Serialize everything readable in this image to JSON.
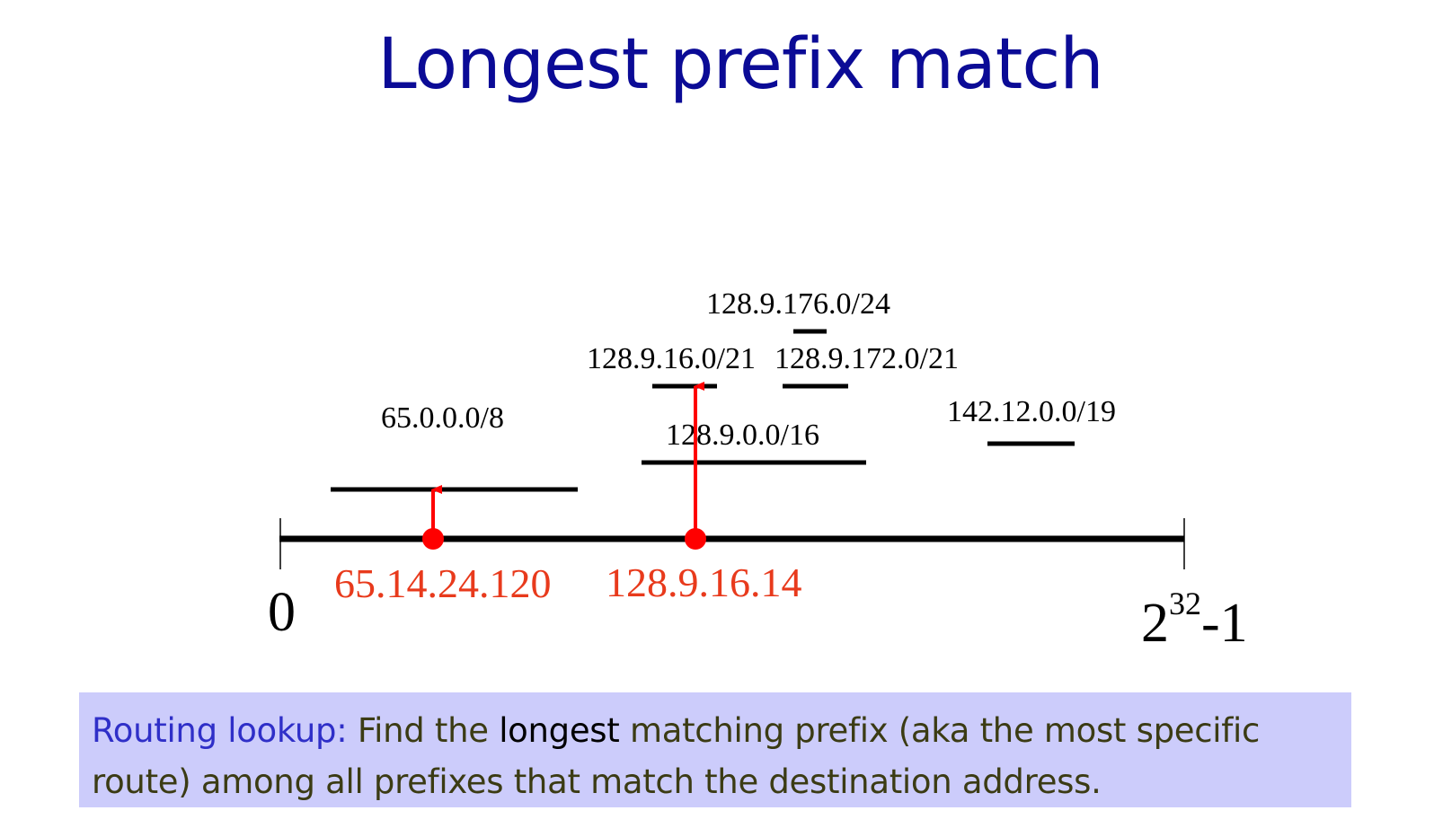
{
  "title": "Longest prefix match",
  "axis": {
    "start_label": "0",
    "end_label_base": "2",
    "end_label_exp": "32",
    "end_label_suffix": "-1"
  },
  "prefixes": [
    {
      "label": "65.0.0.0/8"
    },
    {
      "label": "128.9.0.0/16"
    },
    {
      "label": "128.9.16.0/21"
    },
    {
      "label": "128.9.172.0/21"
    },
    {
      "label": "128.9.176.0/24"
    },
    {
      "label": "142.12.0.0/19"
    }
  ],
  "addresses": [
    {
      "label": "65.14.24.120",
      "color": "#e83a1c"
    },
    {
      "label": "128.9.16.14",
      "color": "#e83a1c"
    }
  ],
  "callout": {
    "lead": "Routing lookup:",
    "part1": " Find the ",
    "emph": "longest",
    "part2": " matching prefix (aka the most specific route) among all prefixes that match the destination address."
  },
  "colors": {
    "title": "#0b0b96",
    "marker": "#ff0000",
    "address_text": "#e83a1c",
    "callout_bg": "#ccccfb",
    "callout_lead": "#2f2fc8"
  }
}
